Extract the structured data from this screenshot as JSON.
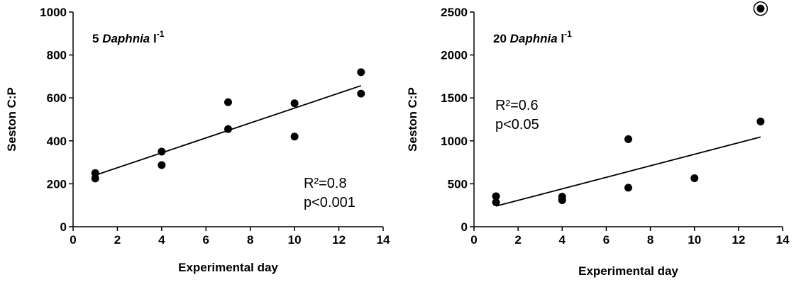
{
  "chart_data": [
    {
      "type": "scatter",
      "panel_label": {
        "prefix": "5 ",
        "italic": "Daphnia",
        "suffix": " l",
        "superscript": "-1"
      },
      "xlabel": "Experimental day",
      "ylabel": "Seston C:P",
      "xlim": [
        0,
        14
      ],
      "ylim": [
        0,
        1000
      ],
      "xticks": [
        0,
        2,
        4,
        6,
        8,
        10,
        12,
        14
      ],
      "yticks": [
        0,
        200,
        400,
        600,
        800,
        1000
      ],
      "grid": false,
      "points": [
        {
          "x": 1,
          "y": 250
        },
        {
          "x": 1,
          "y": 225
        },
        {
          "x": 4,
          "y": 350
        },
        {
          "x": 4,
          "y": 287
        },
        {
          "x": 7,
          "y": 580
        },
        {
          "x": 7,
          "y": 455
        },
        {
          "x": 10,
          "y": 575
        },
        {
          "x": 10,
          "y": 420
        },
        {
          "x": 13,
          "y": 720
        },
        {
          "x": 13,
          "y": 620
        }
      ],
      "trendline": {
        "x": [
          1,
          13
        ],
        "y": [
          240,
          657
        ]
      },
      "stats": [
        "R²=0.8",
        "p<0.001"
      ],
      "stats_position": "bottom-right"
    },
    {
      "type": "scatter",
      "panel_label": {
        "prefix": "20 ",
        "italic": "Daphnia",
        "suffix": " l",
        "superscript": "-1"
      },
      "xlabel": "Experimental day",
      "ylabel": "Seston C:P",
      "xlim": [
        0,
        14
      ],
      "ylim": [
        0,
        2500
      ],
      "xticks": [
        0,
        2,
        4,
        6,
        8,
        10,
        12,
        14
      ],
      "yticks": [
        0,
        500,
        1000,
        1500,
        2000,
        2500
      ],
      "grid": false,
      "points": [
        {
          "x": 1,
          "y": 355
        },
        {
          "x": 1,
          "y": 285
        },
        {
          "x": 4,
          "y": 350
        },
        {
          "x": 4,
          "y": 310
        },
        {
          "x": 7,
          "y": 1020
        },
        {
          "x": 7,
          "y": 455
        },
        {
          "x": 10,
          "y": 565
        },
        {
          "x": 13,
          "y": 1225
        }
      ],
      "outliers": [
        {
          "x": 13,
          "y": 2540
        }
      ],
      "trendline": {
        "x": [
          1,
          13
        ],
        "y": [
          240,
          1045
        ]
      },
      "stats": [
        "R²=0.6",
        "p<0.05"
      ],
      "stats_position": "top-left"
    }
  ]
}
